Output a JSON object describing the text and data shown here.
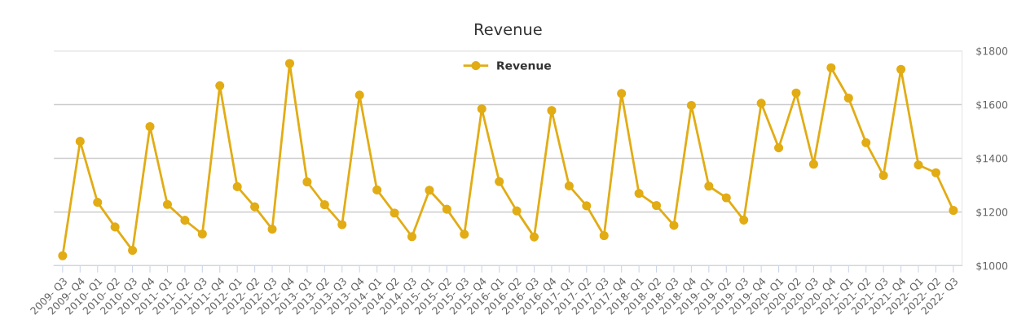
{
  "chart_data": {
    "type": "line",
    "title": "Revenue",
    "categories": [
      "2009- Q3",
      "2009- Q4",
      "2010- Q1",
      "2010- Q2",
      "2010- Q3",
      "2010- Q4",
      "2011- Q1",
      "2011- Q2",
      "2011- Q3",
      "2011- Q4",
      "2012- Q1",
      "2012- Q2",
      "2012- Q3",
      "2012- Q4",
      "2013- Q1",
      "2013- Q2",
      "2013- Q3",
      "2013- Q4",
      "2014- Q1",
      "2014- Q2",
      "2014- Q3",
      "2015- Q1",
      "2015- Q2",
      "2015- Q3",
      "2015- Q4",
      "2016- Q1",
      "2016- Q2",
      "2016- Q3",
      "2016- Q4",
      "2017- Q1",
      "2017- Q2",
      "2017- Q3",
      "2017- Q4",
      "2018- Q1",
      "2018- Q2",
      "2018- Q3",
      "2018- Q4",
      "2019- Q1",
      "2019- Q2",
      "2019- Q3",
      "2019- Q4",
      "2020- Q1",
      "2020- Q2",
      "2020- Q3",
      "2020- Q4",
      "2021- Q1",
      "2021- Q2",
      "2021- Q3",
      "2021- Q4",
      "2022- Q1",
      "2022- Q2",
      "2022- Q3"
    ],
    "series": [
      {
        "name": "Revenue",
        "color": "#e2ac14",
        "values": [
          1037,
          1463,
          1236,
          1144,
          1057,
          1518,
          1228,
          1169,
          1118,
          1670,
          1294,
          1219,
          1136,
          1753,
          1312,
          1227,
          1153,
          1635,
          1282,
          1196,
          1108,
          1281,
          1210,
          1117,
          1584,
          1313,
          1204,
          1107,
          1578,
          1297,
          1223,
          1112,
          1641,
          1269,
          1224,
          1150,
          1597,
          1296,
          1253,
          1170,
          1605,
          1439,
          1643,
          1378,
          1737,
          1624,
          1458,
          1336,
          1731,
          1375,
          1346,
          1206
        ]
      }
    ],
    "ylim": [
      1000,
      1800
    ],
    "yticks": [
      {
        "value": 1000,
        "label": "$1000"
      },
      {
        "value": 1200,
        "label": "$1200"
      },
      {
        "value": 1400,
        "label": "$1400"
      },
      {
        "value": 1600,
        "label": "$1600"
      },
      {
        "value": 1800,
        "label": "$1800"
      }
    ],
    "grid": "y",
    "legend": "top",
    "marker": "circle",
    "line_style": "solid"
  }
}
